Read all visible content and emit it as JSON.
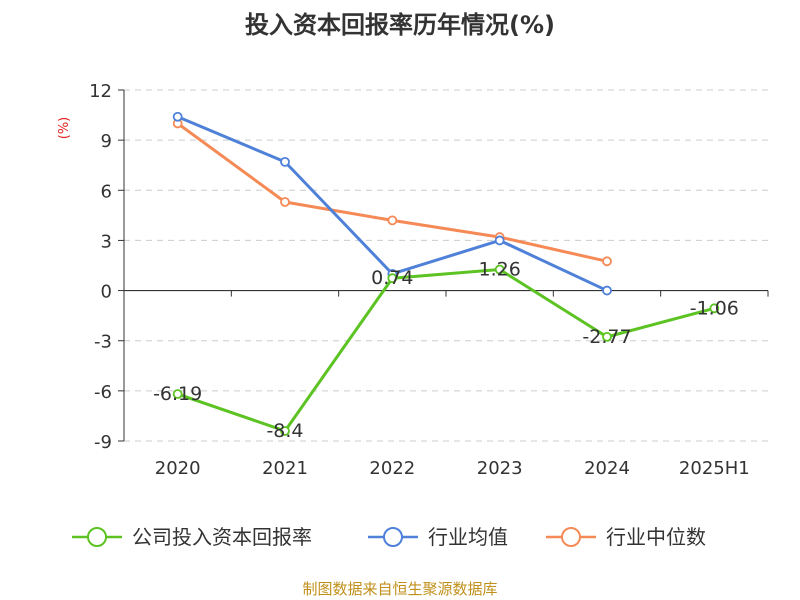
{
  "chart_data": {
    "type": "line",
    "title": "投入资本回报率历年情况(%)",
    "unit_label": "(%)",
    "categories": [
      "2020",
      "2021",
      "2022",
      "2023",
      "2024",
      "2025H1"
    ],
    "ylim": [
      -9,
      12
    ],
    "yticks": [
      12,
      9,
      6,
      3,
      0,
      -3,
      -6,
      -9
    ],
    "grid": true,
    "legend_position": "bottom",
    "series": [
      {
        "name": "公司投入资本回报率",
        "color": "#5cc323",
        "values": [
          -6.19,
          -8.4,
          0.74,
          1.26,
          -2.77,
          -1.06
        ],
        "labels": [
          "-6.19",
          "-8.4",
          "0.74",
          "1.26",
          "-2.77",
          "-1.06"
        ]
      },
      {
        "name": "行业均值",
        "color": "#4f81d9",
        "values": [
          10.4,
          7.7,
          1.0,
          3.0,
          0.0,
          null
        ]
      },
      {
        "name": "行业中位数",
        "color": "#f58a56",
        "values": [
          10.0,
          5.3,
          4.2,
          3.2,
          1.75,
          null
        ]
      }
    ]
  },
  "source": "制图数据来自恒生聚源数据库"
}
